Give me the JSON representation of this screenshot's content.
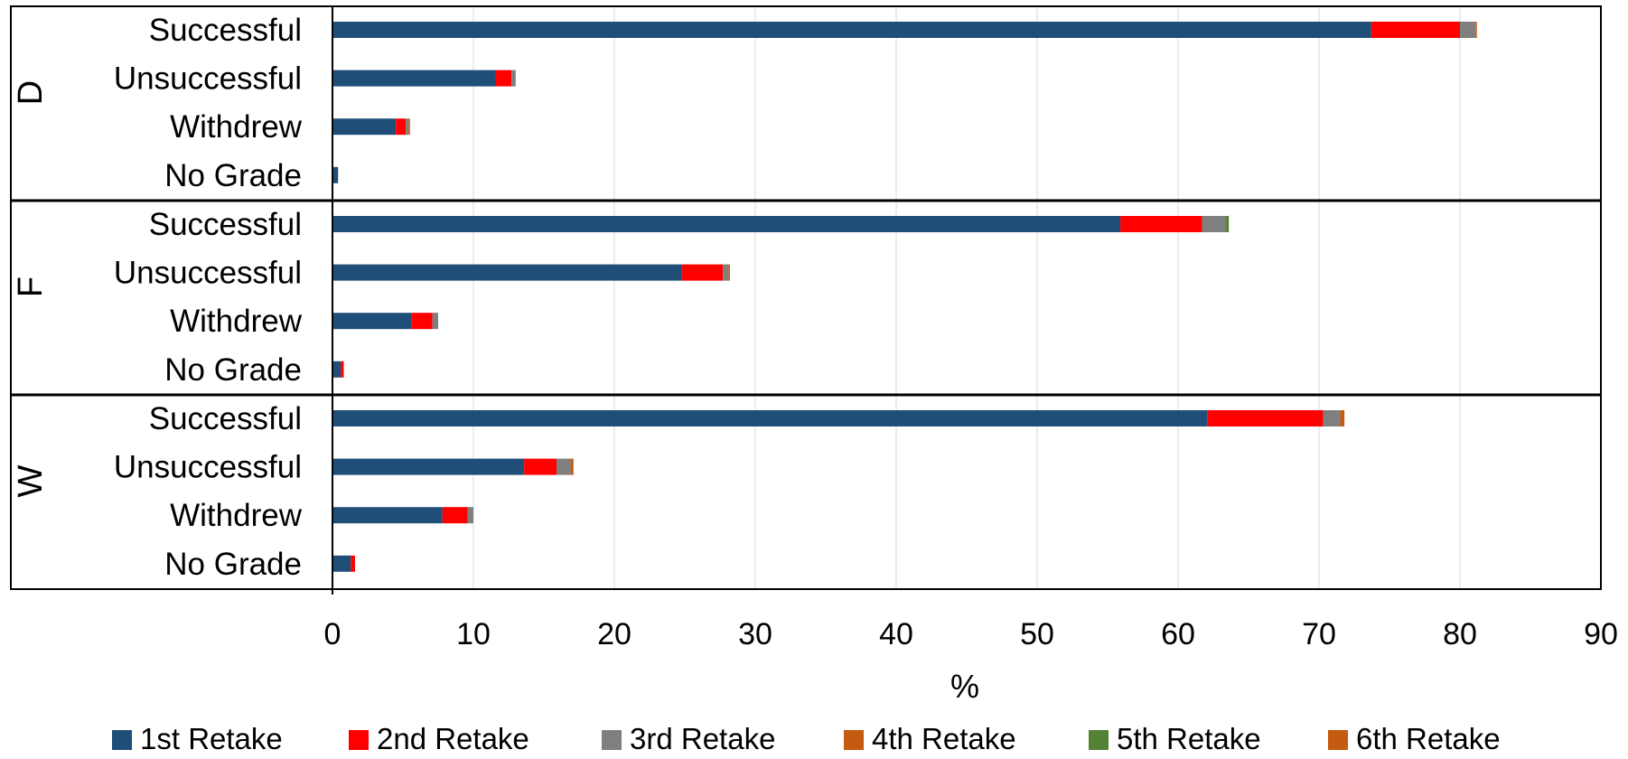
{
  "chart_data": {
    "type": "bar",
    "orientation": "horizontal",
    "stacked": true,
    "xlabel": "%",
    "ylabel": "",
    "xlim": [
      0,
      90
    ],
    "x_ticks": [
      0,
      10,
      20,
      30,
      40,
      50,
      60,
      70,
      80,
      90
    ],
    "grid": "vertical",
    "legend_position": "bottom",
    "groups": [
      {
        "label": "D",
        "categories": [
          "Successful",
          "Unsuccessful",
          "Withdrew",
          "No Grade"
        ]
      },
      {
        "label": "F",
        "categories": [
          "Successful",
          "Unsuccessful",
          "Withdrew",
          "No Grade"
        ]
      },
      {
        "label": "W",
        "categories": [
          "Successful",
          "Unsuccessful",
          "Withdrew",
          "No Grade"
        ]
      }
    ],
    "series": [
      {
        "name": "1st Retake",
        "color": "#1F4E79",
        "values": [
          73.7,
          11.6,
          4.5,
          0.4,
          55.9,
          24.8,
          5.6,
          0.6,
          62.1,
          13.6,
          7.8,
          1.3
        ]
      },
      {
        "name": "2nd Retake",
        "color": "#FF0000",
        "values": [
          6.3,
          1.1,
          0.7,
          0.0,
          5.8,
          2.9,
          1.5,
          0.2,
          8.2,
          2.3,
          1.8,
          0.3
        ]
      },
      {
        "name": "3rd Retake",
        "color": "#7F7F7F",
        "values": [
          1.1,
          0.3,
          0.2,
          0.0,
          1.7,
          0.4,
          0.4,
          0.0,
          1.2,
          1.0,
          0.4,
          0.0
        ]
      },
      {
        "name": "4th Retake",
        "color": "#C55A11",
        "values": [
          0.1,
          0.0,
          0.1,
          0.0,
          0.0,
          0.1,
          0.0,
          0.0,
          0.2,
          0.2,
          0.0,
          0.0
        ]
      },
      {
        "name": "5th Retake",
        "color": "#548235",
        "values": [
          0.0,
          0.0,
          0.0,
          0.0,
          0.2,
          0.0,
          0.0,
          0.0,
          0.0,
          0.0,
          0.0,
          0.0
        ]
      },
      {
        "name": "6th Retake",
        "color": "#C55A11",
        "values": [
          0.0,
          0.0,
          0.0,
          0.0,
          0.0,
          0.0,
          0.0,
          0.0,
          0.1,
          0.0,
          0.0,
          0.0
        ]
      }
    ]
  }
}
